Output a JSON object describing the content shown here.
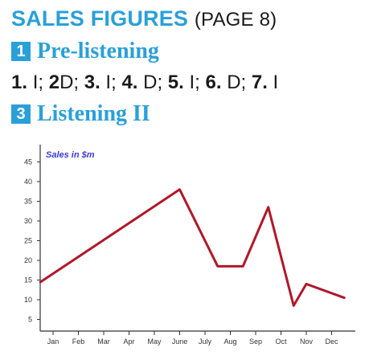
{
  "header": {
    "title": "SALES FIGURES",
    "page_ref": "(PAGE 8)"
  },
  "sections": [
    {
      "number": "1",
      "title": "Pre-listening"
    },
    {
      "number": "3",
      "title": "Listening II"
    }
  ],
  "answers": [
    {
      "num": "1.",
      "val": "I;"
    },
    {
      "num": "2",
      "val": "D;"
    },
    {
      "num": "3.",
      "val": "I;"
    },
    {
      "num": "4.",
      "val": "D;"
    },
    {
      "num": "5.",
      "val": "I;"
    },
    {
      "num": "6.",
      "val": "D;"
    },
    {
      "num": "7.",
      "val": "I"
    }
  ],
  "colors": {
    "accent": "#2aa0d8",
    "line": "#b0182a",
    "chart_title": "#3a3ad8"
  },
  "chart_data": {
    "type": "line",
    "title": "Sales in $m",
    "categories": [
      "Jan",
      "Feb",
      "Mar",
      "Apr",
      "May",
      "June",
      "July",
      "Aug",
      "Sep",
      "Oct",
      "Nov",
      "Dec"
    ],
    "x_positions": [
      0,
      1,
      2,
      3,
      4,
      5,
      6,
      7,
      8,
      9,
      10,
      11
    ],
    "series": [
      {
        "x": [
          -0.5,
          5,
          6.5,
          7.5,
          8.5,
          9.5,
          10,
          11.5
        ],
        "values": [
          14.5,
          38,
          18.5,
          18.5,
          33.5,
          8.5,
          14,
          10.5
        ]
      }
    ],
    "y_ticks": [
      "5",
      "10",
      "15",
      "20",
      "25",
      "30",
      "35",
      "40",
      "45"
    ],
    "ylim": [
      0,
      48
    ],
    "grid": false,
    "xlabel": "",
    "ylabel": ""
  }
}
